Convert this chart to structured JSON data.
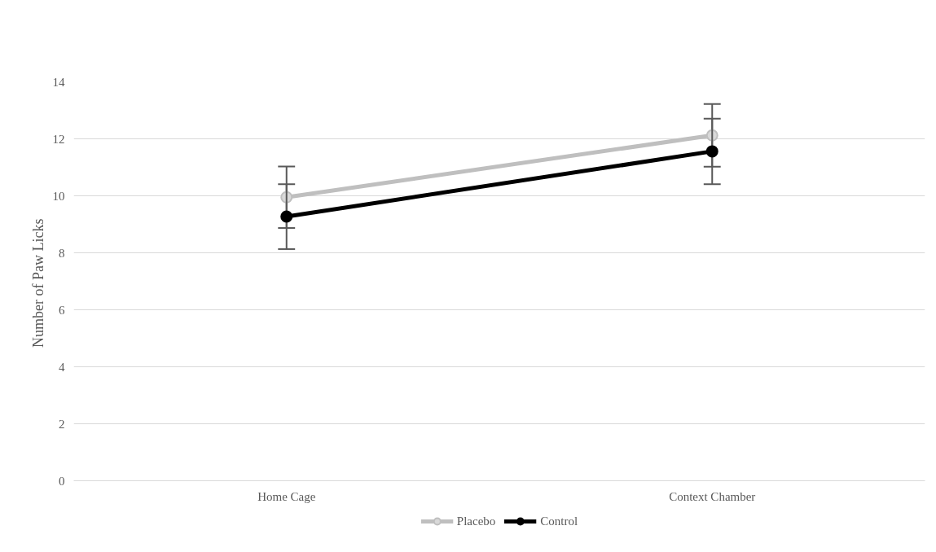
{
  "chart_data": {
    "type": "line",
    "ylabel": "Number of  Paw Licks",
    "categories": [
      "Home Cage",
      "Context Chamber"
    ],
    "series": [
      {
        "name": "Placebo",
        "color": "#bfbfbf",
        "values": [
          9.95,
          12.12
        ],
        "errors": [
          1.08,
          1.1
        ]
      },
      {
        "name": "Control",
        "color": "#000000",
        "values": [
          9.27,
          11.56
        ],
        "errors": [
          1.14,
          1.15
        ]
      }
    ],
    "ylim": [
      0,
      14
    ],
    "yticks": [
      0,
      2,
      4,
      6,
      8,
      10,
      12,
      14
    ],
    "grid": "y",
    "legend": "bottom",
    "marker": "circle",
    "line_style": "solid"
  }
}
